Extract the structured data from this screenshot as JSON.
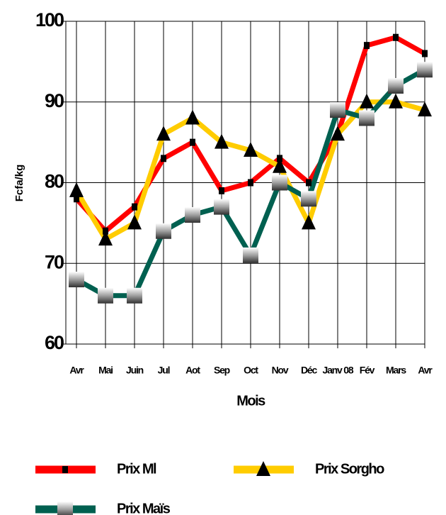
{
  "chart_data": {
    "type": "line",
    "y_label": "Fcfa/kg",
    "x_label": "Mois",
    "categories": [
      "Avr",
      "Mai",
      "Juin",
      "Jul",
      "Aot",
      "Sep",
      "Oct",
      "Nov",
      "Déc",
      "Janv 08",
      "Fév",
      "Mars",
      "Avr"
    ],
    "series": [
      {
        "name": "Prix Ml",
        "color": "#ff0000",
        "marker": "square",
        "values": [
          78,
          74,
          77,
          83,
          85,
          79,
          80,
          83,
          80,
          86,
          97,
          98,
          96
        ]
      },
      {
        "name": "Prix Sorgho",
        "color": "#ffcc00",
        "marker": "triangle",
        "values": [
          79,
          73,
          75,
          86,
          88,
          85,
          84,
          82,
          75,
          86,
          90,
          90,
          89
        ]
      },
      {
        "name": "Prix Maïs",
        "color": "#006050",
        "marker": "grey-square",
        "values": [
          68,
          66,
          66,
          74,
          76,
          77,
          71,
          80,
          78,
          89,
          88,
          92,
          94
        ]
      }
    ],
    "ylim": [
      60,
      100
    ],
    "yticks": [
      60,
      70,
      80,
      90,
      100
    ],
    "grid": true,
    "legend": "bottom"
  }
}
